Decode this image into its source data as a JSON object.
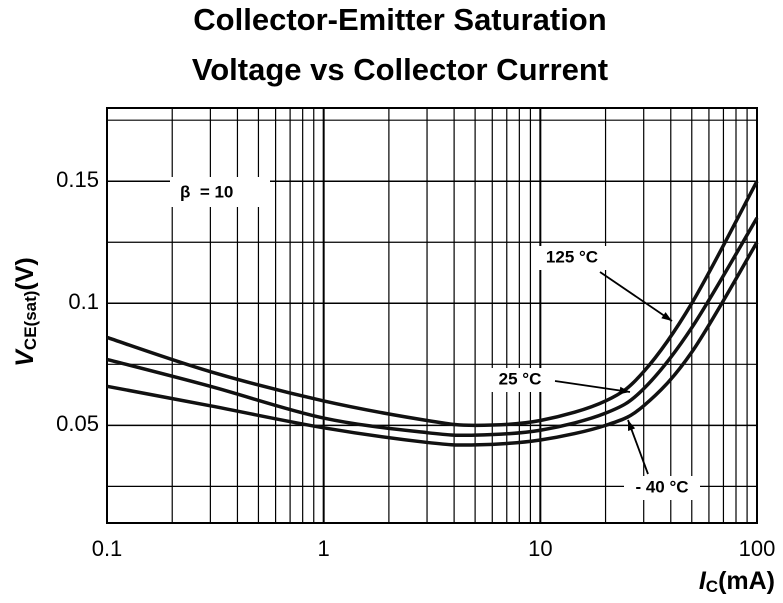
{
  "chart_data": {
    "type": "line",
    "title": [
      "Collector-Emitter Saturation",
      "Voltage vs Collector Current"
    ],
    "ylabel": [
      "V",
      "CE(sat)",
      "(V)"
    ],
    "xlabel": [
      "I",
      "C",
      "(mA)"
    ],
    "annotation": "β  = 10",
    "x": [
      0.1,
      0.3,
      1,
      3,
      5,
      10,
      20,
      30,
      50,
      100
    ],
    "series": [
      {
        "name": "125 °C",
        "color": "#111",
        "values": [
          0.086,
          0.072,
          0.06,
          0.052,
          0.05,
          0.052,
          0.06,
          0.072,
          0.1,
          0.15
        ]
      },
      {
        "name": "25 °C",
        "color": "#111",
        "values": [
          0.077,
          0.066,
          0.053,
          0.047,
          0.046,
          0.048,
          0.055,
          0.065,
          0.09,
          0.135
        ]
      },
      {
        "name": "- 40 °C",
        "color": "#111",
        "values": [
          0.066,
          0.058,
          0.049,
          0.043,
          0.042,
          0.044,
          0.05,
          0.058,
          0.08,
          0.125
        ]
      }
    ],
    "xscale": "log",
    "xlim": [
      0.1,
      100
    ],
    "xticks": [
      0.1,
      1,
      10,
      100
    ],
    "ylim": [
      0.01,
      0.18
    ],
    "yticks": [
      0.05,
      0.1,
      0.15
    ],
    "y_minor_grid": [
      0.025,
      0.075,
      0.125,
      0.175
    ],
    "grid": true
  }
}
